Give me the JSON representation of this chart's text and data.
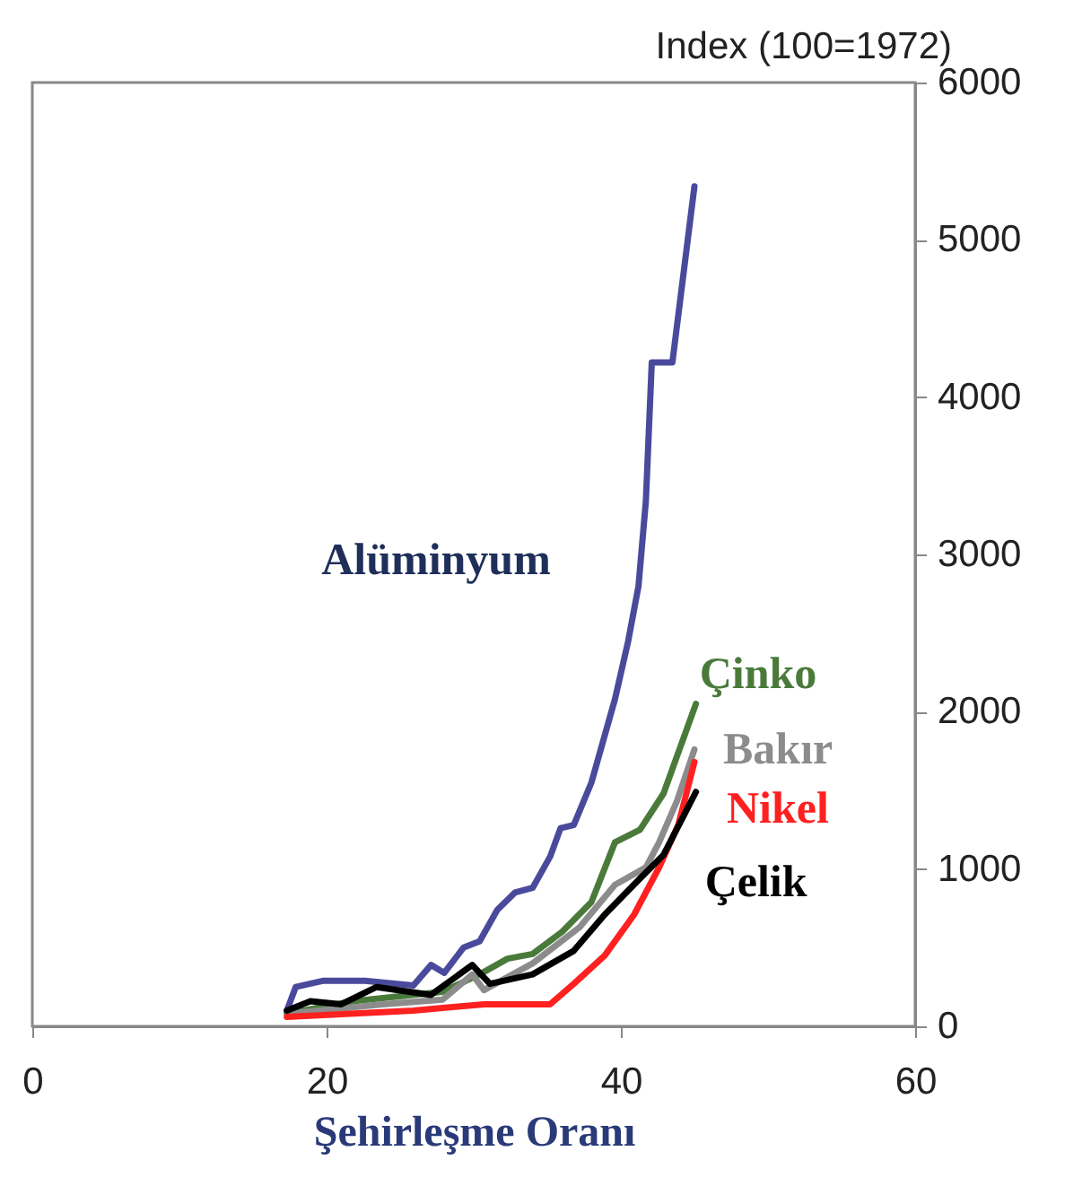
{
  "chart_data": {
    "type": "line",
    "xlabel": "Şehirleşme Oranı",
    "ylabel": "Index (100=1972)",
    "xlim": [
      0,
      60
    ],
    "xticks": [
      0,
      20,
      40,
      60
    ],
    "ylim": [
      0,
      6000
    ],
    "yticks": [
      0,
      1000,
      2000,
      3000,
      4000,
      5000,
      6000
    ],
    "grid": false,
    "series": [
      {
        "name": "Alüminyum",
        "color": "#4a4a9c",
        "x": [
          17.3,
          17.9,
          19.8,
          22.6,
          25.9,
          27.1,
          28.0,
          29.3,
          30.4,
          31.6,
          32.8,
          34.0,
          35.2,
          35.9,
          36.8,
          38.0,
          39.6,
          40.5,
          41.2,
          41.7,
          42.1,
          43.5,
          45.0
        ],
        "values": [
          100,
          250,
          290,
          290,
          260,
          390,
          340,
          500,
          540,
          740,
          850,
          880,
          1080,
          1260,
          1280,
          1550,
          2080,
          2450,
          2800,
          3340,
          4220,
          4220,
          5340
        ]
      },
      {
        "name": "Çinko",
        "color": "#4a7a3a",
        "x": [
          17.3,
          21.8,
          27.9,
          30.4,
          32.3,
          34.0,
          36.0,
          38.0,
          39.6,
          41.3,
          42.9,
          45.1
        ],
        "values": [
          80,
          160,
          220,
          330,
          430,
          460,
          600,
          790,
          1170,
          1250,
          1480,
          2050
        ]
      },
      {
        "name": "Bakır",
        "color": "#8c8c8c",
        "x": [
          17.3,
          23.8,
          27.9,
          29.9,
          30.7,
          34.0,
          37.2,
          39.6,
          41.7,
          42.6,
          43.8,
          45.0
        ],
        "values": [
          80,
          140,
          170,
          330,
          230,
          400,
          630,
          900,
          1010,
          1170,
          1430,
          1760
        ]
      },
      {
        "name": "Nikel",
        "color": "#ff2020",
        "x": [
          17.3,
          25.9,
          30.7,
          35.2,
          36.8,
          38.9,
          40.9,
          42.6,
          43.9,
          45.0
        ],
        "values": [
          60,
          100,
          140,
          140,
          270,
          450,
          710,
          1010,
          1280,
          1680
        ]
      },
      {
        "name": "Çelik",
        "color": "#000000",
        "x": [
          17.3,
          18.9,
          21.0,
          23.4,
          27.1,
          29.9,
          31.1,
          34.0,
          36.8,
          38.9,
          41.3,
          42.9,
          45.1
        ],
        "values": [
          100,
          160,
          140,
          250,
          200,
          390,
          270,
          330,
          480,
          710,
          940,
          1090,
          1490
        ]
      }
    ]
  }
}
